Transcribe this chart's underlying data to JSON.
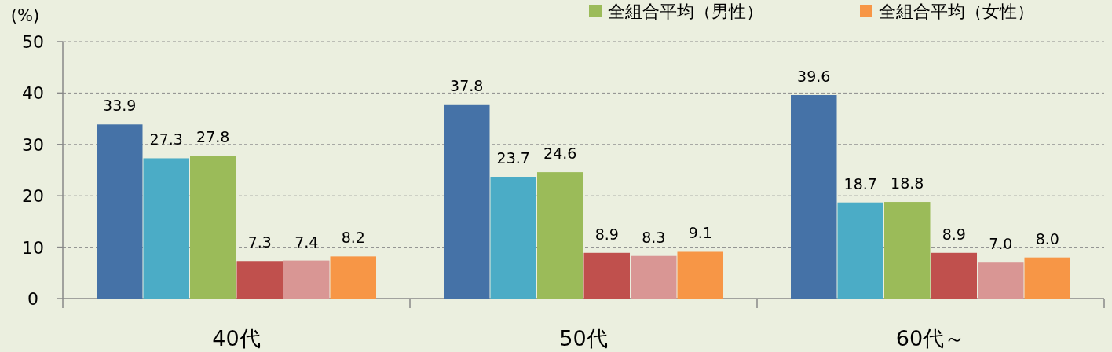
{
  "chart_data": {
    "type": "bar",
    "ylabel": "(%)",
    "categories": [
      "40代",
      "50代",
      "60代～"
    ],
    "series": [
      {
        "color": "#4572a7",
        "values": [
          33.9,
          37.8,
          39.6
        ],
        "value_labels": [
          "33.9",
          "37.8",
          "39.6"
        ]
      },
      {
        "color": "#4bacc6",
        "values": [
          27.3,
          23.7,
          18.7
        ],
        "value_labels": [
          "27.3",
          "23.7",
          "18.7"
        ]
      },
      {
        "name": "全組合平均（男性）",
        "color": "#9bbb59",
        "values": [
          27.8,
          24.6,
          18.8
        ],
        "value_labels": [
          "27.8",
          "24.6",
          "18.8"
        ]
      },
      {
        "color": "#c0504d",
        "values": [
          7.3,
          8.9,
          8.9
        ],
        "value_labels": [
          "7.3",
          "8.9",
          "8.9"
        ]
      },
      {
        "color": "#d99694",
        "values": [
          7.4,
          8.3,
          7
        ],
        "value_labels": [
          "7.4",
          "8.3",
          "7.0"
        ]
      },
      {
        "name": "全組合平均（女性）",
        "color": "#f79646",
        "values": [
          8.2,
          9.1,
          8
        ],
        "value_labels": [
          "8.2",
          "9.1",
          "8.0"
        ]
      }
    ],
    "ylim": [
      0,
      50
    ],
    "yticks": [
      0,
      10,
      20,
      30,
      40,
      50
    ],
    "grid": "y",
    "legend": "top right"
  }
}
